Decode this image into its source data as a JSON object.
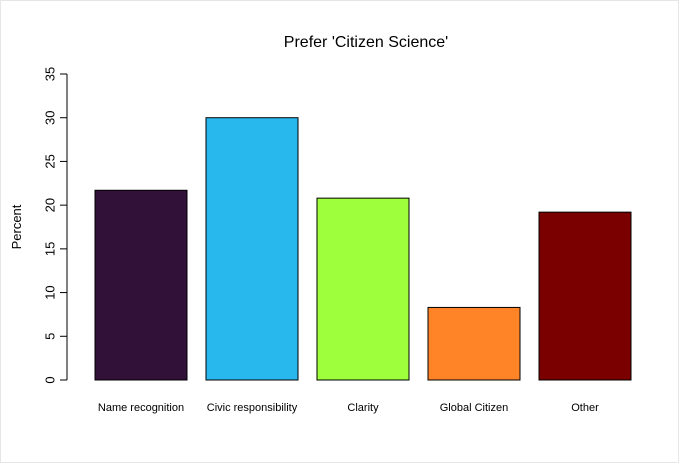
{
  "chart_data": {
    "type": "bar",
    "title": "Prefer 'Citizen Science'",
    "xlabel": "",
    "ylabel": "Percent",
    "ylim": [
      0,
      35
    ],
    "yticks": [
      0,
      5,
      10,
      15,
      20,
      25,
      30,
      35
    ],
    "grid": false,
    "categories": [
      "Name recognition",
      "Civic responsibility",
      "Clarity",
      "Global Citizen",
      "Other"
    ],
    "values": [
      21.7,
      30.0,
      20.8,
      8.3,
      19.2
    ],
    "colors": [
      "#321138",
      "#29B8EE",
      "#9EFF3D",
      "#FF8427",
      "#7A0000"
    ]
  }
}
